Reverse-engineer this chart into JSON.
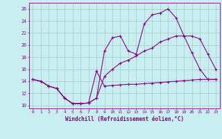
{
  "xlabel": "Windchill (Refroidissement éolien,°C)",
  "bg_color": "#c8eef0",
  "grid_color": "#a0cccc",
  "line_color": "#880088",
  "xlim": [
    -0.5,
    23.5
  ],
  "ylim": [
    9.5,
    27
  ],
  "yticks": [
    10,
    12,
    14,
    16,
    18,
    20,
    22,
    24,
    26
  ],
  "xticks": [
    0,
    1,
    2,
    3,
    4,
    5,
    6,
    7,
    8,
    9,
    10,
    11,
    12,
    13,
    14,
    15,
    16,
    17,
    18,
    19,
    20,
    21,
    22,
    23
  ],
  "s1_x": [
    0,
    1,
    2,
    3,
    4,
    5,
    6,
    7,
    8,
    9,
    10,
    11,
    12,
    13,
    14,
    15,
    16,
    17,
    18,
    19,
    20,
    21,
    22,
    23
  ],
  "s1_y": [
    14.3,
    14.0,
    13.2,
    12.8,
    11.2,
    10.3,
    10.3,
    10.4,
    15.7,
    13.2,
    13.3,
    13.4,
    13.5,
    13.5,
    13.6,
    13.7,
    13.8,
    13.9,
    14.0,
    14.1,
    14.2,
    14.3,
    14.3,
    14.3
  ],
  "s2_x": [
    0,
    1,
    2,
    3,
    4,
    5,
    6,
    7,
    8,
    9,
    10,
    11,
    12,
    13,
    14,
    15,
    16,
    17,
    18,
    19,
    20,
    21,
    22,
    23
  ],
  "s2_y": [
    14.3,
    14.0,
    13.2,
    12.8,
    11.2,
    10.3,
    10.3,
    10.4,
    11.2,
    19.0,
    21.2,
    21.5,
    19.0,
    18.5,
    23.5,
    25.0,
    25.3,
    26.0,
    24.5,
    21.5,
    18.7,
    16.0,
    14.3,
    14.3
  ],
  "s3_x": [
    0,
    1,
    2,
    3,
    4,
    5,
    6,
    7,
    8,
    9,
    10,
    11,
    12,
    13,
    14,
    15,
    16,
    17,
    18,
    19,
    20,
    21,
    22,
    23
  ],
  "s3_y": [
    14.3,
    14.0,
    13.2,
    12.8,
    11.2,
    10.3,
    10.3,
    10.4,
    11.2,
    14.8,
    16.0,
    17.0,
    17.5,
    18.2,
    19.0,
    19.5,
    20.5,
    21.0,
    21.5,
    21.5,
    21.5,
    21.0,
    18.5,
    16.0
  ]
}
